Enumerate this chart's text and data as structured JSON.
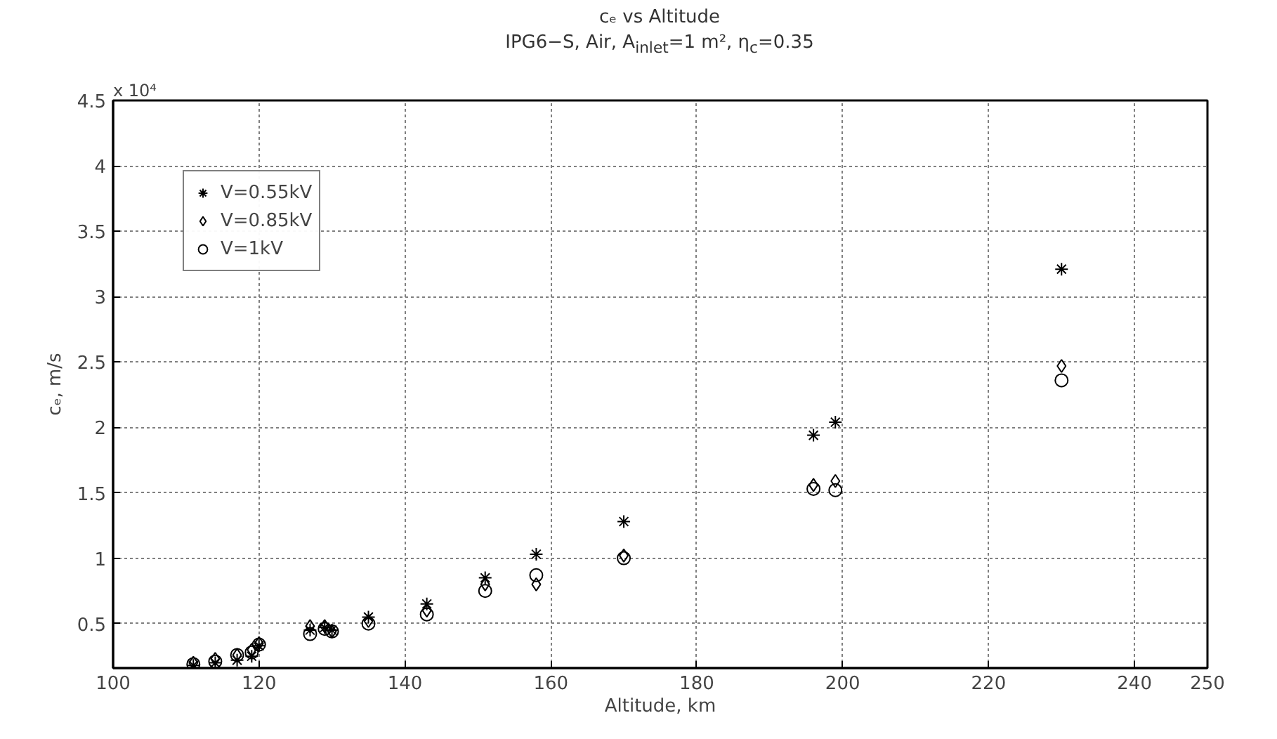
{
  "chart_data": {
    "type": "scatter",
    "title": "cₑ vs Altitude",
    "subtitle": "IPG6−S, Air, A$_{inlet}$=1 m², η$_{c}$=0.35",
    "xlabel": "Altitude, km",
    "ylabel": "cₑ, m/s",
    "annotations": [
      "x 10⁴"
    ],
    "series": [
      {
        "name": "V=0.55kV",
        "color": "#000000",
        "marker": "cross",
        "x": [
          111,
          114,
          117,
          119,
          120,
          127,
          129,
          130,
          135,
          143,
          151,
          158,
          170,
          196,
          199,
          230
        ],
        "values": [
          0.18,
          0.2,
          0.22,
          0.25,
          0.33,
          0.45,
          0.47,
          0.45,
          0.55,
          0.65,
          0.85,
          1.03,
          1.28,
          1.94,
          2.04,
          3.21
        ]
      },
      {
        "name": "V=0.85kV",
        "color": "#000000",
        "marker": "diamond",
        "x": [
          111,
          114,
          117,
          119,
          120,
          127,
          129,
          130,
          135,
          143,
          151,
          158,
          170,
          196,
          199,
          230
        ],
        "values": [
          0.2,
          0.23,
          0.26,
          0.3,
          0.35,
          0.48,
          0.48,
          0.44,
          0.52,
          0.6,
          0.8,
          0.8,
          1.02,
          1.56,
          1.59,
          2.47
        ]
      },
      {
        "name": "V=1kV",
        "color": "#000000",
        "marker": "circle",
        "x": [
          111,
          114,
          117,
          119,
          120,
          127,
          129,
          130,
          135,
          143,
          151,
          158,
          170,
          196,
          199,
          230
        ],
        "values": [
          0.19,
          0.21,
          0.26,
          0.28,
          0.34,
          0.42,
          0.46,
          0.44,
          0.5,
          0.57,
          0.75,
          0.87,
          1.0,
          1.53,
          1.52,
          2.36
        ]
      }
    ],
    "xlim": [
      100,
      250
    ],
    "xticks": [
      100,
      120,
      140,
      160,
      180,
      200,
      220,
      240,
      250
    ],
    "ylim": [
      0.16,
      4.5
    ],
    "yticks": [
      0.5,
      1,
      1.5,
      2,
      2.5,
      3,
      3.5,
      4,
      4.5
    ],
    "grid": true,
    "legend": "top left"
  }
}
